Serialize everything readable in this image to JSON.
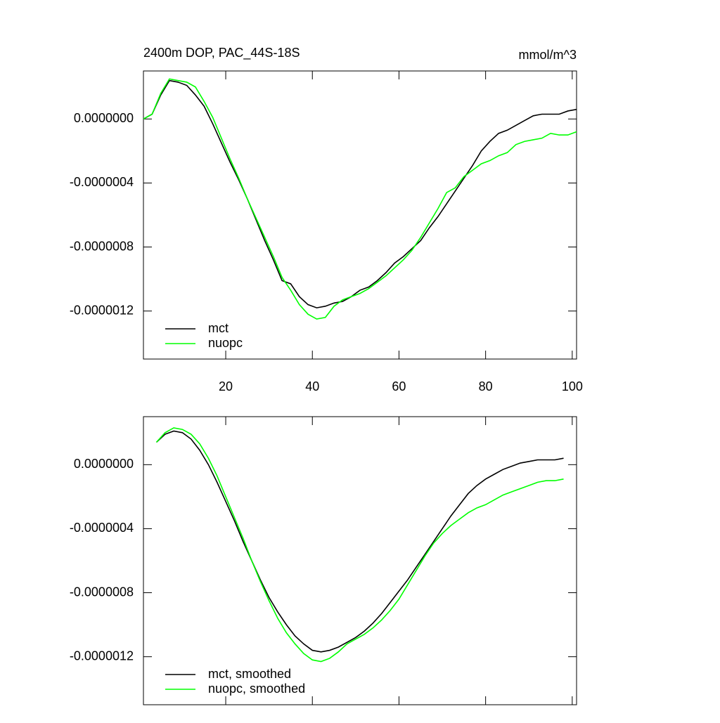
{
  "chart_data": [
    {
      "type": "line",
      "title": "2400m DOP, PAC_44S-18S",
      "units": "mmol/m^3",
      "x": [
        1,
        3,
        5,
        7,
        9,
        11,
        13,
        15,
        17,
        19,
        21,
        23,
        25,
        27,
        29,
        31,
        33,
        35,
        37,
        39,
        41,
        43,
        45,
        47,
        49,
        51,
        53,
        55,
        57,
        59,
        61,
        63,
        65,
        67,
        69,
        71,
        73,
        75,
        77,
        79,
        81,
        83,
        85,
        87,
        89,
        91,
        93,
        95,
        97,
        99,
        101
      ],
      "series": [
        {
          "name": "mct",
          "color": "#000000",
          "values": [
            0,
            3e-08,
            1.5e-07,
            2.4e-07,
            2.3e-07,
            2.1e-07,
            1.5e-07,
            8e-08,
            -3e-08,
            -1.5e-07,
            -2.7e-07,
            -3.8e-07,
            -5e-07,
            -6.3e-07,
            -7.6e-07,
            -8.8e-07,
            -1.01e-06,
            -1.03e-06,
            -1.11e-06,
            -1.16e-06,
            -1.18e-06,
            -1.17e-06,
            -1.15e-06,
            -1.14e-06,
            -1.11e-06,
            -1.07e-06,
            -1.05e-06,
            -1.01e-06,
            -9.6e-07,
            -9e-07,
            -8.6e-07,
            -8.1e-07,
            -7.6e-07,
            -6.8e-07,
            -6.1e-07,
            -5.3e-07,
            -4.5e-07,
            -3.7e-07,
            -2.9e-07,
            -2e-07,
            -1.4e-07,
            -9e-08,
            -7e-08,
            -4e-08,
            -1e-08,
            2e-08,
            3e-08,
            3e-08,
            3e-08,
            5e-08,
            6e-08
          ]
        },
        {
          "name": "nuopc",
          "color": "#00ff00",
          "values": [
            0,
            3e-08,
            1.6e-07,
            2.5e-07,
            2.4e-07,
            2.3e-07,
            2e-07,
            1.1e-07,
            1e-08,
            -1.2e-07,
            -2.5e-07,
            -3.7e-07,
            -5e-07,
            -6.2e-07,
            -7.4e-07,
            -8.6e-07,
            -9.9e-07,
            -1.07e-06,
            -1.16e-06,
            -1.22e-06,
            -1.25e-06,
            -1.24e-06,
            -1.17e-06,
            -1.13e-06,
            -1.11e-06,
            -1.09e-06,
            -1.06e-06,
            -1.02e-06,
            -9.8e-07,
            -9.3e-07,
            -8.8e-07,
            -8.2e-07,
            -7.4e-07,
            -6.5e-07,
            -5.6e-07,
            -4.6e-07,
            -4.3e-07,
            -3.6e-07,
            -3.2e-07,
            -2.8e-07,
            -2.6e-07,
            -2.3e-07,
            -2.1e-07,
            -1.6e-07,
            -1.4e-07,
            -1.3e-07,
            -1.2e-07,
            -9e-08,
            -1e-07,
            -1e-07,
            -8e-08
          ]
        }
      ],
      "xlim": [
        1,
        101
      ],
      "xticks": [
        20,
        40,
        60,
        80,
        100
      ],
      "xtick_labels": true,
      "ylim": [
        -1.5e-06,
        3e-07
      ],
      "yticks": [
        {
          "value": 0,
          "label": "0.0000000"
        },
        {
          "value": -4e-07,
          "label": "-0.0000004"
        },
        {
          "value": -8e-07,
          "label": "-0.0000008"
        },
        {
          "value": -1.2e-06,
          "label": "-0.0000012"
        }
      ],
      "legend": "lower left"
    },
    {
      "type": "line",
      "x": [
        4,
        6,
        8,
        10,
        12,
        14,
        16,
        18,
        20,
        22,
        24,
        26,
        28,
        30,
        32,
        34,
        36,
        38,
        40,
        42,
        44,
        46,
        48,
        50,
        52,
        54,
        56,
        58,
        60,
        62,
        64,
        66,
        68,
        70,
        72,
        74,
        76,
        78,
        80,
        82,
        84,
        86,
        88,
        90,
        92,
        94,
        96,
        98
      ],
      "series": [
        {
          "name": "mct, smoothed",
          "color": "#000000",
          "values": [
            1.4e-07,
            1.9e-07,
            2.1e-07,
            2e-07,
            1.6e-07,
            9e-08,
            0,
            -1.1e-07,
            -2.3e-07,
            -3.5e-07,
            -4.8e-07,
            -6e-07,
            -7.2e-07,
            -8.3e-07,
            -9.2e-07,
            -1e-06,
            -1.07e-06,
            -1.12e-06,
            -1.16e-06,
            -1.17e-06,
            -1.16e-06,
            -1.14e-06,
            -1.11e-06,
            -1.08e-06,
            -1.04e-06,
            -9.9e-07,
            -9.3e-07,
            -8.6e-07,
            -7.9e-07,
            -7.2e-07,
            -6.4e-07,
            -5.6e-07,
            -4.8e-07,
            -4e-07,
            -3.2e-07,
            -2.5e-07,
            -1.8e-07,
            -1.3e-07,
            -9e-08,
            -6e-08,
            -3e-08,
            -1e-08,
            1e-08,
            2e-08,
            3e-08,
            3e-08,
            3e-08,
            4e-08
          ]
        },
        {
          "name": "nuopc, smoothed",
          "color": "#00ff00",
          "values": [
            1.4e-07,
            2e-07,
            2.3e-07,
            2.2e-07,
            1.9e-07,
            1.3e-07,
            4e-08,
            -7e-08,
            -2e-07,
            -3.3e-07,
            -4.6e-07,
            -6e-07,
            -7.3e-07,
            -8.5e-07,
            -9.6e-07,
            -1.05e-06,
            -1.12e-06,
            -1.18e-06,
            -1.22e-06,
            -1.23e-06,
            -1.21e-06,
            -1.17e-06,
            -1.12e-06,
            -1.09e-06,
            -1.06e-06,
            -1.02e-06,
            -9.7e-07,
            -9.1e-07,
            -8.4e-07,
            -7.5e-07,
            -6.6e-07,
            -5.7e-07,
            -4.9e-07,
            -4.3e-07,
            -3.8e-07,
            -3.4e-07,
            -3e-07,
            -2.7e-07,
            -2.5e-07,
            -2.2e-07,
            -1.9e-07,
            -1.7e-07,
            -1.5e-07,
            -1.3e-07,
            -1.1e-07,
            -1e-07,
            -1e-07,
            -9e-08
          ]
        }
      ],
      "xlim": [
        1,
        101
      ],
      "xticks": [
        20,
        40,
        60,
        80,
        100
      ],
      "xtick_labels": false,
      "ylim": [
        -1.5e-06,
        3e-07
      ],
      "yticks": [
        {
          "value": 0,
          "label": "0.0000000"
        },
        {
          "value": -4e-07,
          "label": "-0.0000004"
        },
        {
          "value": -8e-07,
          "label": "-0.0000008"
        },
        {
          "value": -1.2e-06,
          "label": "-0.0000012"
        }
      ],
      "legend": "lower left"
    }
  ]
}
